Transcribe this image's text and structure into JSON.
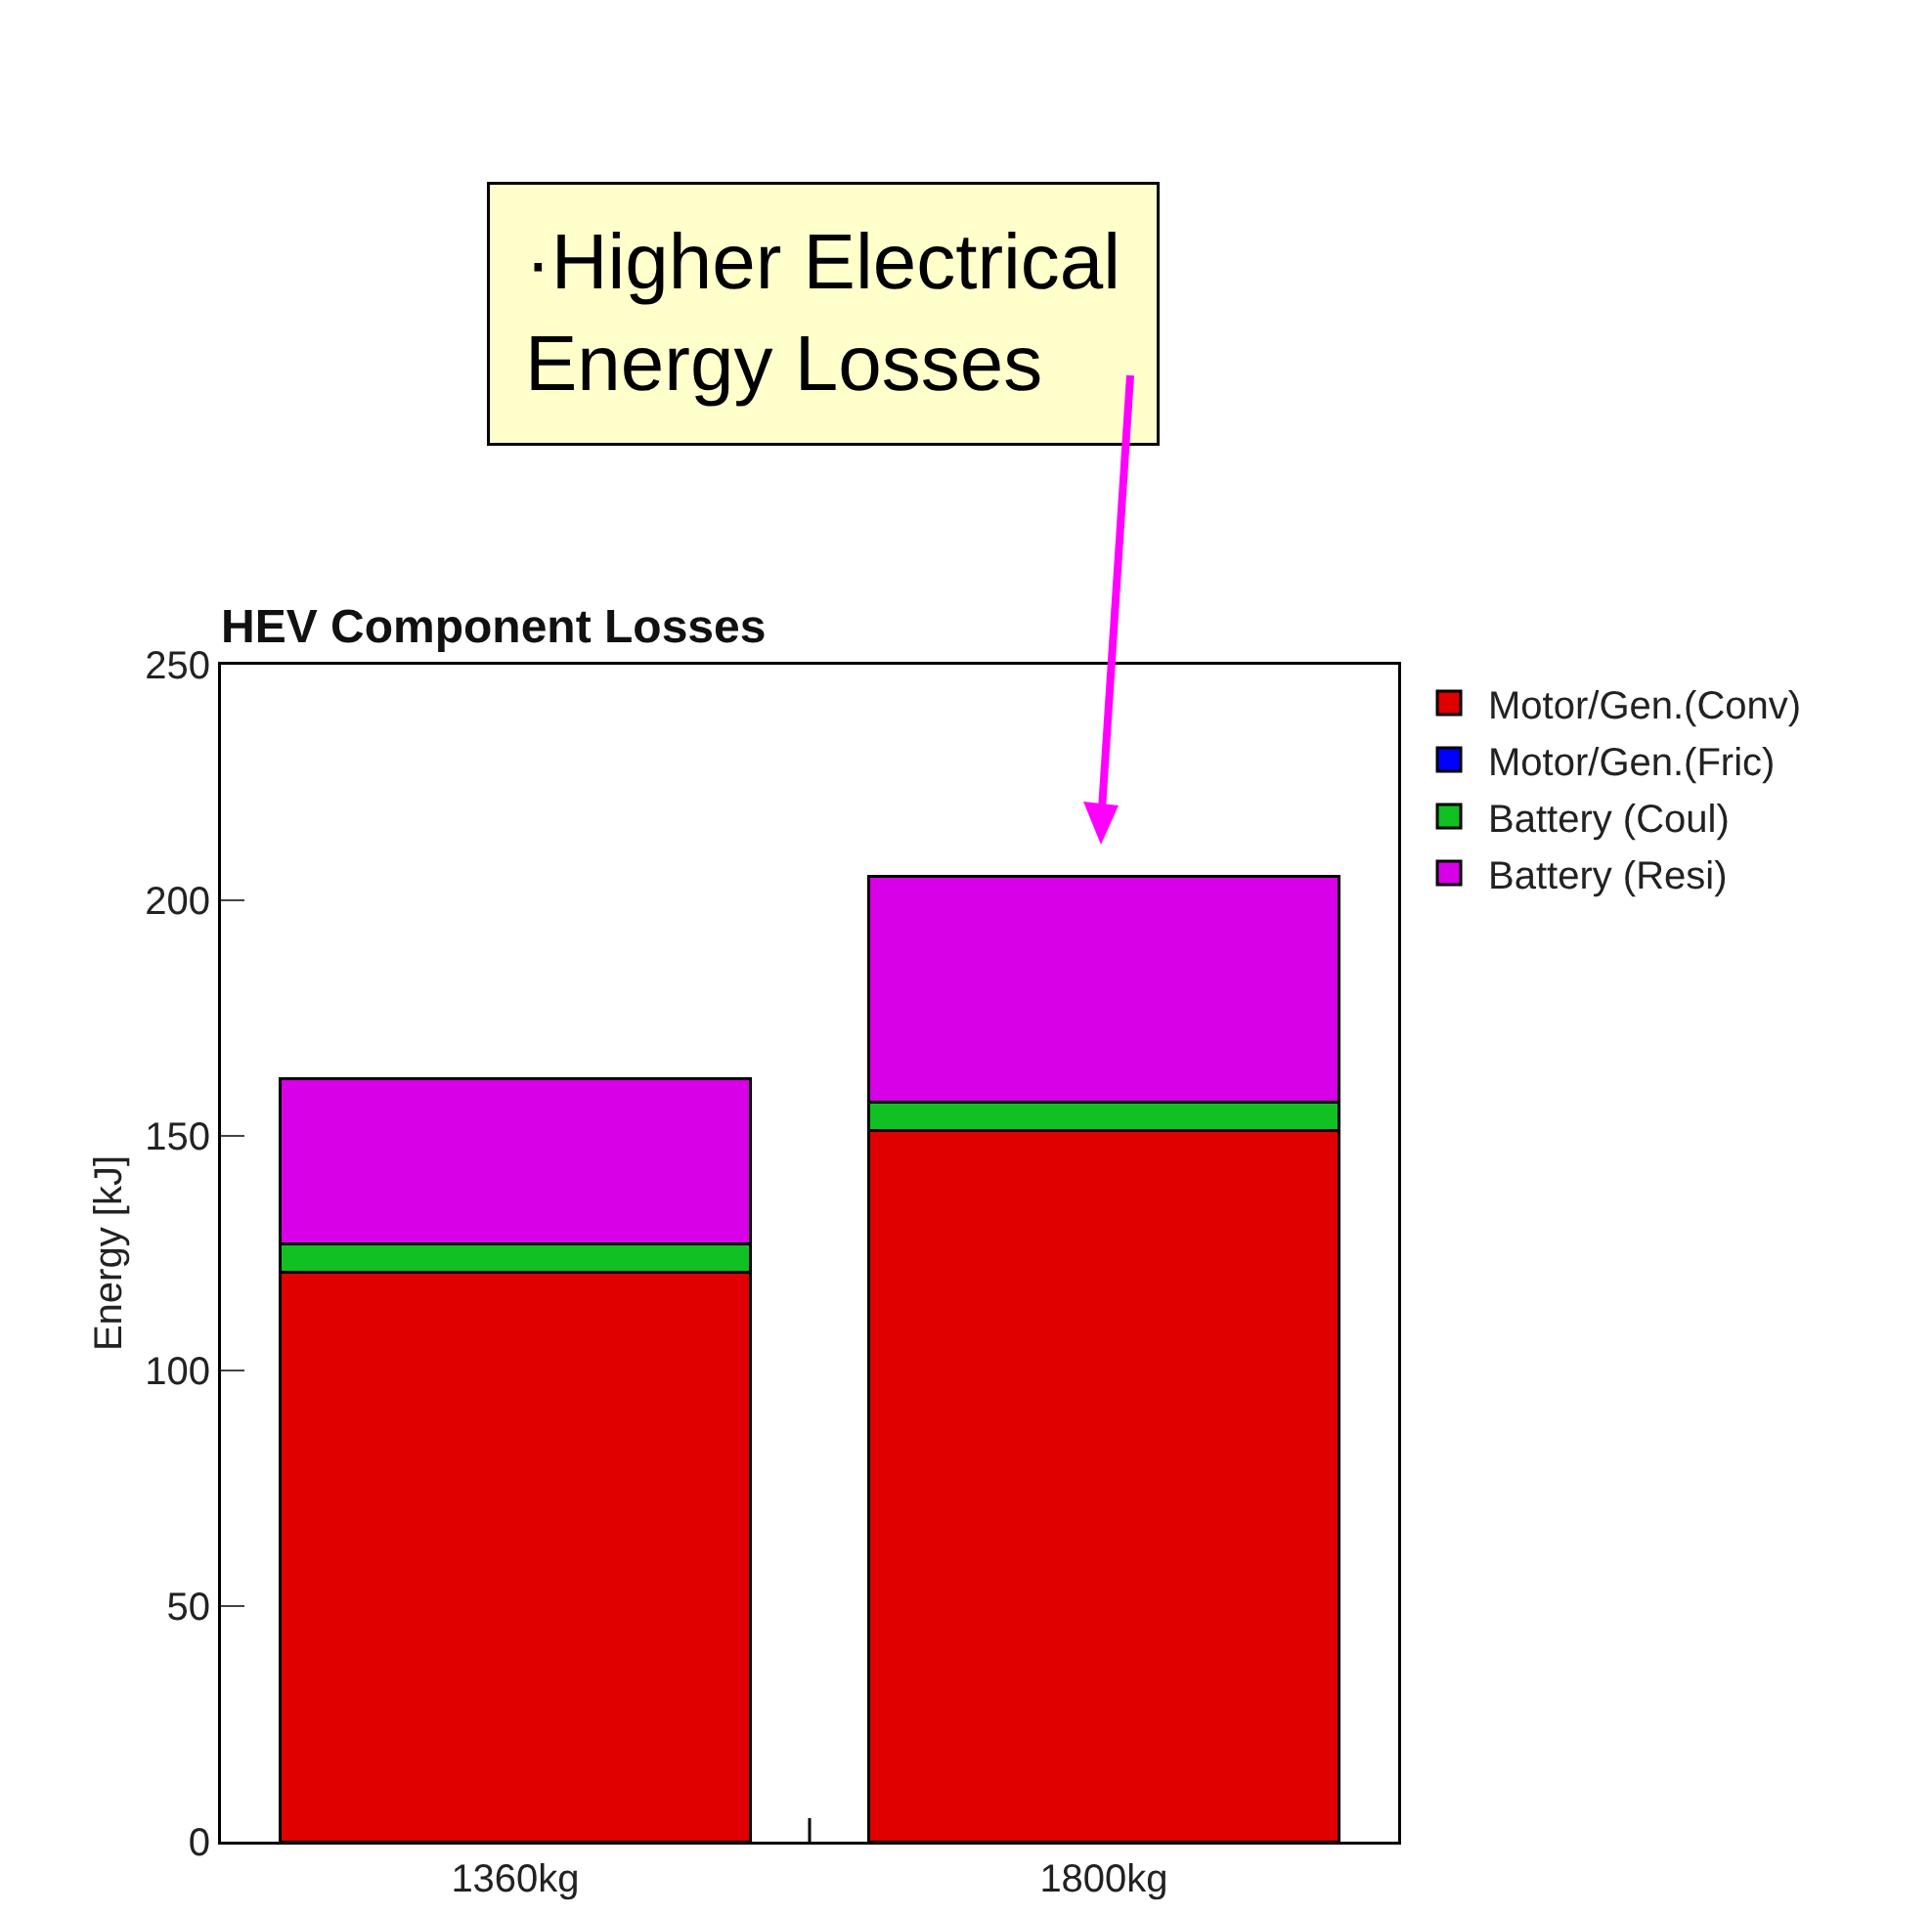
{
  "chart_data": {
    "type": "bar",
    "title": "HEV Component Losses",
    "ylabel": "Energy [kJ]",
    "categories": [
      "1360kg",
      "1800kg"
    ],
    "stacked": true,
    "series": [
      {
        "name": "Motor/Gen.(Conv)",
        "color": "#e00000",
        "values": [
          121,
          151
        ]
      },
      {
        "name": "Motor/Gen.(Fric)",
        "color": "#0000ff",
        "values": [
          0,
          0
        ]
      },
      {
        "name": "Battery (Coul)",
        "color": "#11c022",
        "values": [
          6,
          6
        ]
      },
      {
        "name": "Battery (Resi)",
        "color": "#d800e6",
        "values": [
          35,
          48
        ]
      }
    ],
    "ylim": [
      0,
      250
    ],
    "yticks": [
      0,
      50,
      100,
      150,
      200,
      250
    ],
    "grid": false,
    "legend": "top right",
    "annotations": [
      "·Higher Electrical\nEnergy Losses"
    ]
  }
}
